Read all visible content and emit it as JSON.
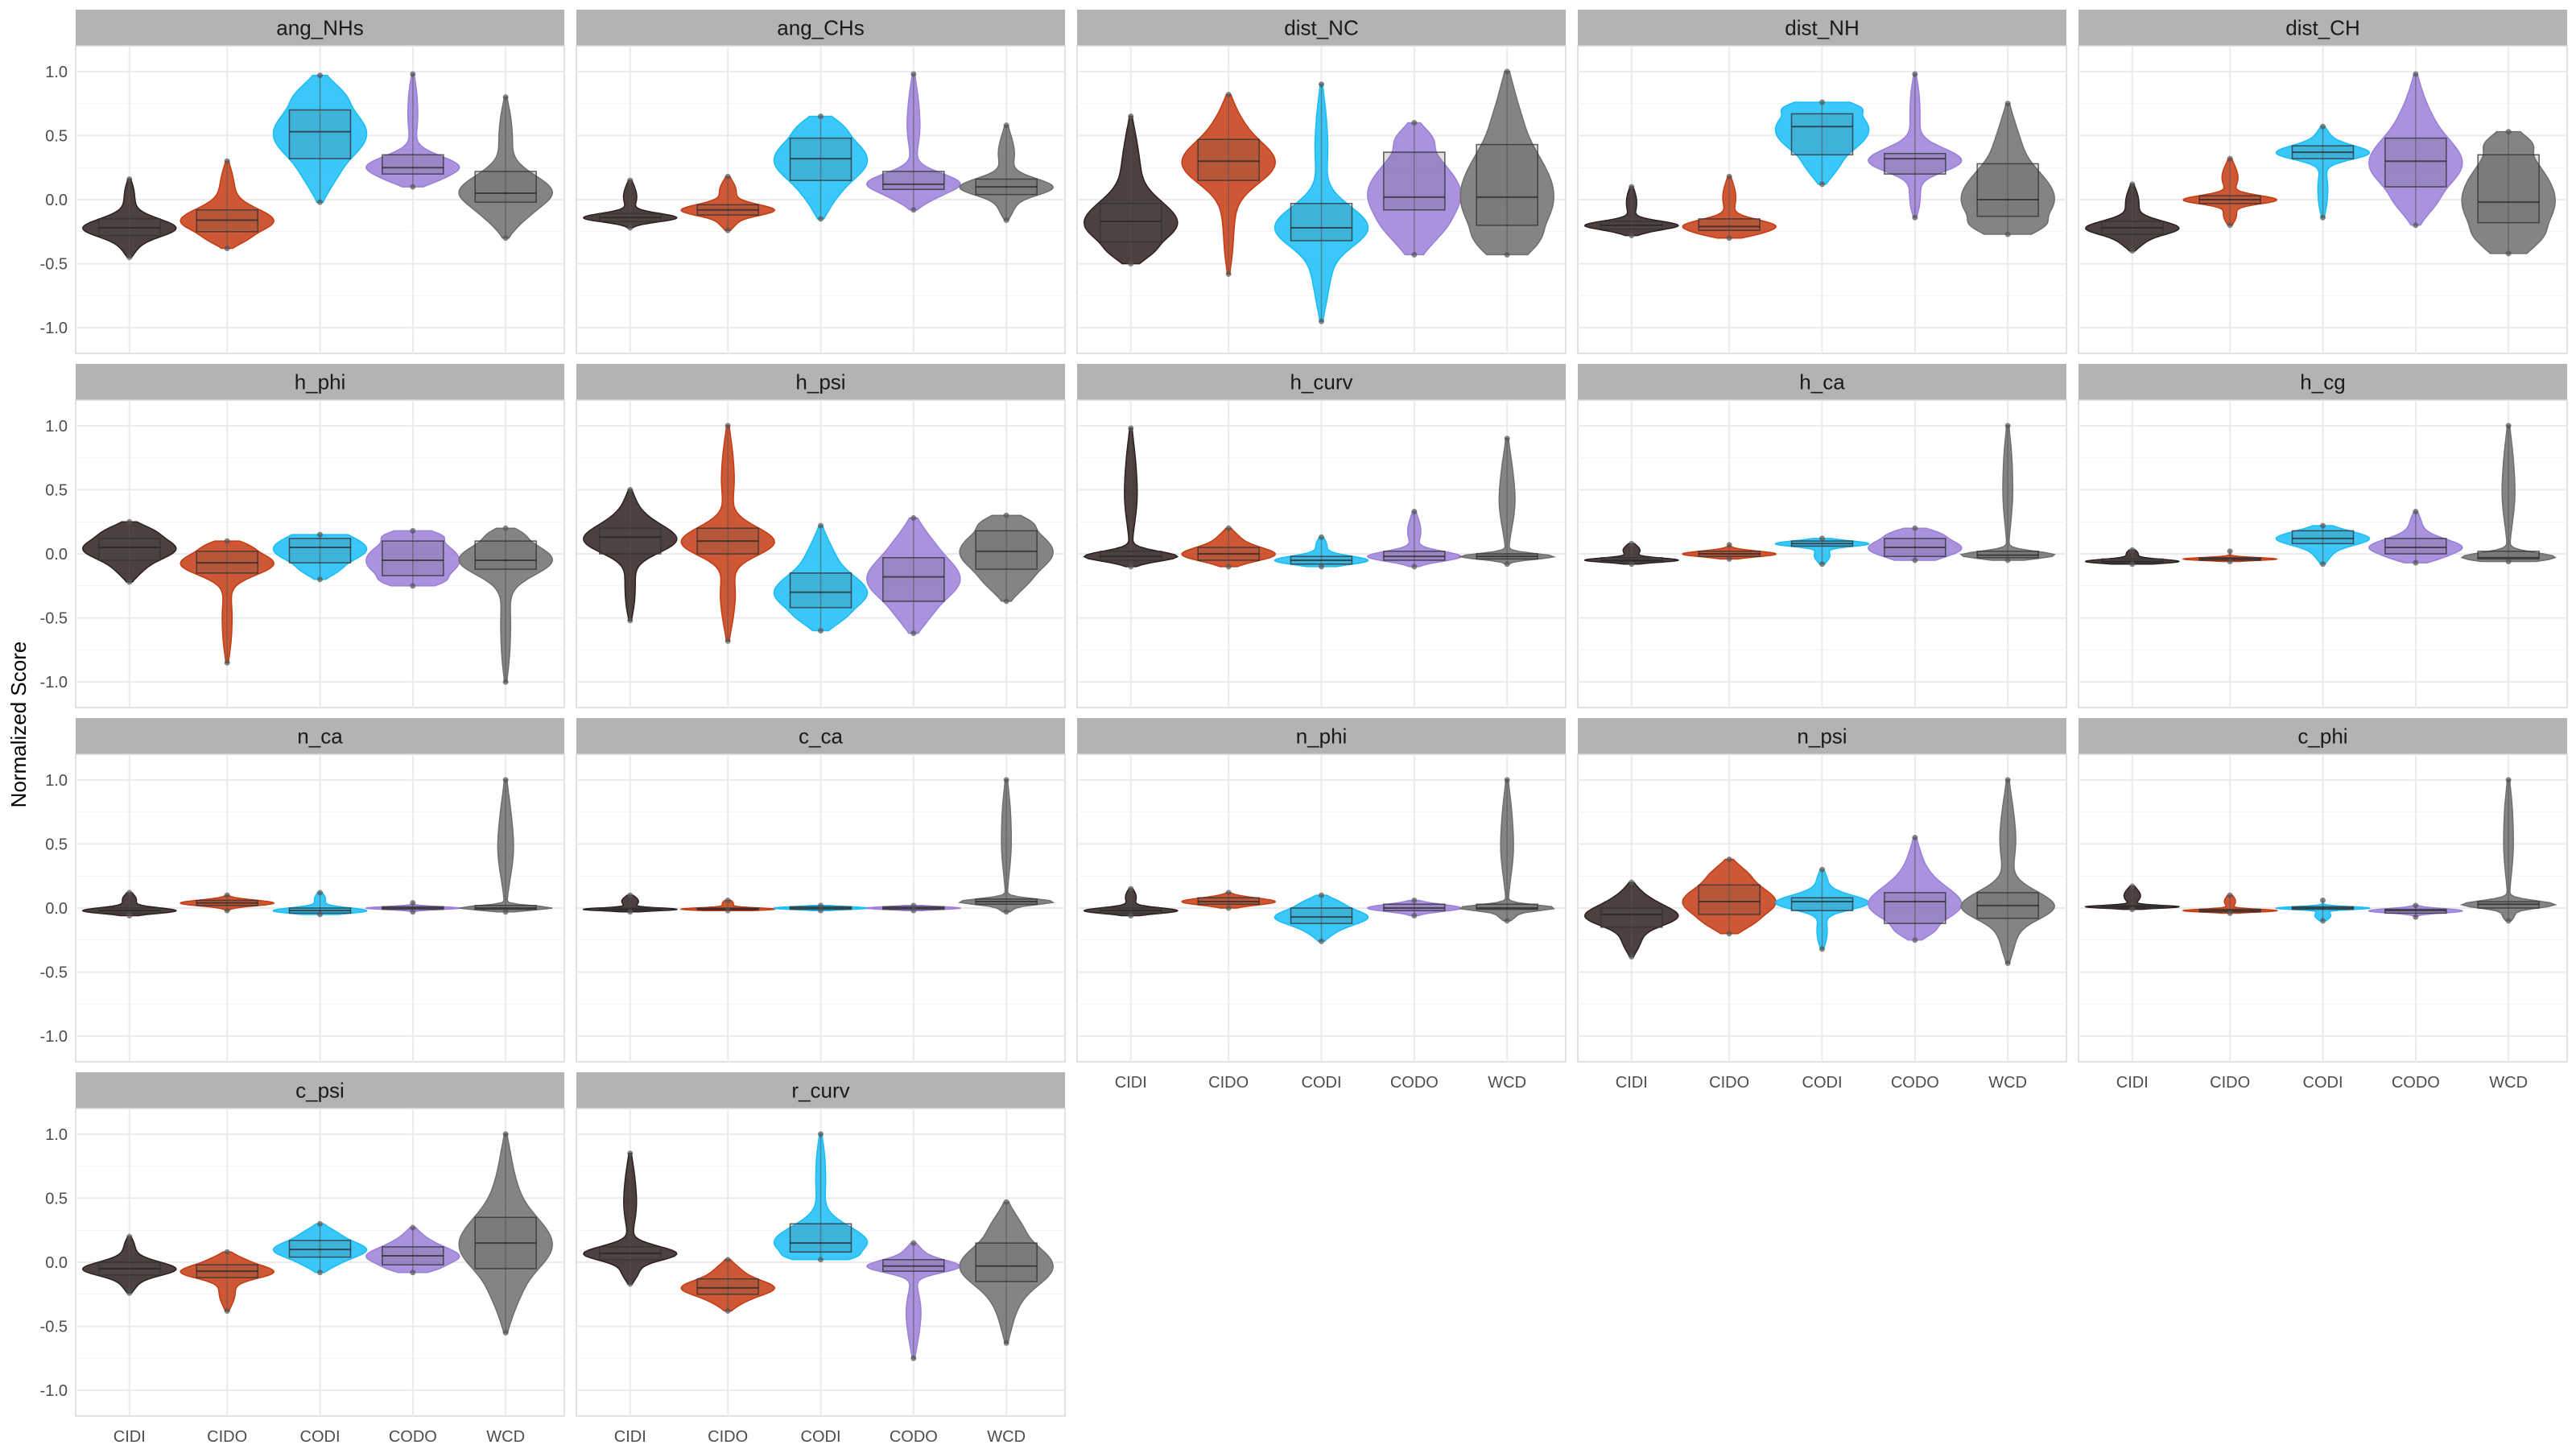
{
  "chart_data": {
    "type": "violin",
    "ylabel": "Normalized Score",
    "ylim": [
      -1.2,
      1.2
    ],
    "yticks": [
      -1.0,
      -0.5,
      0.0,
      0.5,
      1.0
    ],
    "ytick_labels": [
      "-1.0",
      "-0.5",
      "0.0",
      "0.5",
      "1.0"
    ],
    "categories": [
      "CIDI",
      "CIDO",
      "CODI",
      "CODO",
      "WCD"
    ],
    "category_colors": [
      "#2e1f1f",
      "#c53b12",
      "#19bdf7",
      "#9b7fd8",
      "#6e6e6e"
    ],
    "panel_background": "#ffffff",
    "strip_color": "#b3b3b3",
    "grid_color": "#ebebeb",
    "panels": [
      {
        "title": "ang_NHs",
        "groups": [
          {
            "min": -0.45,
            "q1": -0.28,
            "median": -0.22,
            "q3": -0.15,
            "max": 0.16
          },
          {
            "min": -0.38,
            "q1": -0.25,
            "median": -0.16,
            "q3": -0.08,
            "max": 0.3
          },
          {
            "min": -0.02,
            "q1": 0.32,
            "median": 0.53,
            "q3": 0.7,
            "max": 0.97
          },
          {
            "min": 0.1,
            "q1": 0.2,
            "median": 0.25,
            "q3": 0.35,
            "max": 0.98
          },
          {
            "min": -0.3,
            "q1": -0.02,
            "median": 0.05,
            "q3": 0.22,
            "max": 0.8
          }
        ]
      },
      {
        "title": "ang_CHs",
        "groups": [
          {
            "min": -0.22,
            "q1": -0.17,
            "median": -0.14,
            "q3": -0.11,
            "max": 0.15
          },
          {
            "min": -0.24,
            "q1": -0.12,
            "median": -0.08,
            "q3": -0.04,
            "max": 0.18
          },
          {
            "min": -0.15,
            "q1": 0.15,
            "median": 0.32,
            "q3": 0.48,
            "max": 0.65
          },
          {
            "min": -0.08,
            "q1": 0.08,
            "median": 0.12,
            "q3": 0.22,
            "max": 0.98
          },
          {
            "min": -0.16,
            "q1": 0.04,
            "median": 0.1,
            "q3": 0.16,
            "max": 0.58
          }
        ]
      },
      {
        "title": "dist_NC",
        "groups": [
          {
            "min": -0.5,
            "q1": -0.33,
            "median": -0.17,
            "q3": -0.03,
            "max": 0.65
          },
          {
            "min": -0.58,
            "q1": 0.15,
            "median": 0.3,
            "q3": 0.47,
            "max": 0.82
          },
          {
            "min": -0.95,
            "q1": -0.32,
            "median": -0.22,
            "q3": -0.03,
            "max": 0.9
          },
          {
            "min": -0.43,
            "q1": -0.08,
            "median": 0.02,
            "q3": 0.37,
            "max": 0.6
          },
          {
            "min": -0.43,
            "q1": -0.2,
            "median": 0.02,
            "q3": 0.43,
            "max": 1.0
          }
        ]
      },
      {
        "title": "dist_NH",
        "groups": [
          {
            "min": -0.28,
            "q1": -0.23,
            "median": -0.2,
            "q3": -0.17,
            "max": 0.1
          },
          {
            "min": -0.3,
            "q1": -0.24,
            "median": -0.21,
            "q3": -0.15,
            "max": 0.18
          },
          {
            "min": 0.12,
            "q1": 0.35,
            "median": 0.57,
            "q3": 0.67,
            "max": 0.76
          },
          {
            "min": -0.14,
            "q1": 0.2,
            "median": 0.32,
            "q3": 0.36,
            "max": 0.98
          },
          {
            "min": -0.27,
            "q1": -0.13,
            "median": 0.0,
            "q3": 0.28,
            "max": 0.75
          }
        ]
      },
      {
        "title": "dist_CH",
        "groups": [
          {
            "min": -0.4,
            "q1": -0.27,
            "median": -0.22,
            "q3": -0.17,
            "max": 0.12
          },
          {
            "min": -0.2,
            "q1": -0.03,
            "median": 0.0,
            "q3": 0.03,
            "max": 0.32
          },
          {
            "min": -0.14,
            "q1": 0.32,
            "median": 0.37,
            "q3": 0.42,
            "max": 0.57
          },
          {
            "min": -0.2,
            "q1": 0.1,
            "median": 0.3,
            "q3": 0.48,
            "max": 0.98
          },
          {
            "min": -0.42,
            "q1": -0.18,
            "median": -0.02,
            "q3": 0.35,
            "max": 0.53
          }
        ]
      },
      {
        "title": "h_phi",
        "groups": [
          {
            "min": -0.22,
            "q1": -0.05,
            "median": 0.05,
            "q3": 0.12,
            "max": 0.25
          },
          {
            "min": -0.85,
            "q1": -0.15,
            "median": -0.07,
            "q3": 0.02,
            "max": 0.1
          },
          {
            "min": -0.2,
            "q1": -0.07,
            "median": 0.05,
            "q3": 0.12,
            "max": 0.15
          },
          {
            "min": -0.25,
            "q1": -0.17,
            "median": -0.05,
            "q3": 0.1,
            "max": 0.18
          },
          {
            "min": -1.0,
            "q1": -0.12,
            "median": -0.05,
            "q3": 0.1,
            "max": 0.2
          }
        ]
      },
      {
        "title": "h_psi",
        "groups": [
          {
            "min": -0.52,
            "q1": 0.0,
            "median": 0.13,
            "q3": 0.2,
            "max": 0.5
          },
          {
            "min": -0.68,
            "q1": 0.0,
            "median": 0.1,
            "q3": 0.2,
            "max": 1.0
          },
          {
            "min": -0.6,
            "q1": -0.42,
            "median": -0.3,
            "q3": -0.15,
            "max": 0.22
          },
          {
            "min": -0.62,
            "q1": -0.37,
            "median": -0.18,
            "q3": -0.03,
            "max": 0.28
          },
          {
            "min": -0.37,
            "q1": -0.12,
            "median": 0.02,
            "q3": 0.18,
            "max": 0.3
          }
        ]
      },
      {
        "title": "h_curv",
        "groups": [
          {
            "min": -0.1,
            "q1": -0.05,
            "median": -0.02,
            "q3": 0.02,
            "max": 0.98
          },
          {
            "min": -0.1,
            "q1": -0.05,
            "median": 0.0,
            "q3": 0.05,
            "max": 0.2
          },
          {
            "min": -0.1,
            "q1": -0.08,
            "median": -0.05,
            "q3": -0.02,
            "max": 0.13
          },
          {
            "min": -0.1,
            "q1": -0.05,
            "median": -0.02,
            "q3": 0.02,
            "max": 0.33
          },
          {
            "min": -0.08,
            "q1": -0.04,
            "median": -0.02,
            "q3": 0.0,
            "max": 0.9
          }
        ]
      },
      {
        "title": "h_ca",
        "groups": [
          {
            "min": -0.08,
            "q1": -0.06,
            "median": -0.05,
            "q3": -0.03,
            "max": 0.08
          },
          {
            "min": -0.04,
            "q1": -0.02,
            "median": 0.0,
            "q3": 0.02,
            "max": 0.07
          },
          {
            "min": -0.08,
            "q1": 0.06,
            "median": 0.08,
            "q3": 0.1,
            "max": 0.12
          },
          {
            "min": -0.05,
            "q1": -0.02,
            "median": 0.05,
            "q3": 0.12,
            "max": 0.2
          },
          {
            "min": -0.05,
            "q1": -0.03,
            "median": -0.01,
            "q3": 0.02,
            "max": 1.0
          }
        ]
      },
      {
        "title": "h_cg",
        "groups": [
          {
            "min": -0.08,
            "q1": -0.07,
            "median": -0.06,
            "q3": -0.04,
            "max": 0.03
          },
          {
            "min": -0.06,
            "q1": -0.05,
            "median": -0.04,
            "q3": -0.03,
            "max": 0.02
          },
          {
            "min": -0.08,
            "q1": 0.08,
            "median": 0.12,
            "q3": 0.18,
            "max": 0.22
          },
          {
            "min": -0.07,
            "q1": 0.0,
            "median": 0.05,
            "q3": 0.12,
            "max": 0.33
          },
          {
            "min": -0.06,
            "q1": -0.04,
            "median": -0.03,
            "q3": 0.02,
            "max": 1.0
          }
        ]
      },
      {
        "title": "n_ca",
        "groups": [
          {
            "min": -0.06,
            "q1": -0.04,
            "median": -0.02,
            "q3": 0.0,
            "max": 0.12
          },
          {
            "min": -0.02,
            "q1": 0.02,
            "median": 0.04,
            "q3": 0.06,
            "max": 0.1
          },
          {
            "min": -0.05,
            "q1": -0.04,
            "median": -0.02,
            "q3": 0.0,
            "max": 0.12
          },
          {
            "min": -0.03,
            "q1": -0.01,
            "median": 0.0,
            "q3": 0.01,
            "max": 0.04
          },
          {
            "min": -0.03,
            "q1": -0.01,
            "median": 0.0,
            "q3": 0.02,
            "max": 1.0
          }
        ]
      },
      {
        "title": "c_ca",
        "groups": [
          {
            "min": -0.03,
            "q1": -0.02,
            "median": -0.01,
            "q3": 0.0,
            "max": 0.1
          },
          {
            "min": -0.02,
            "q1": -0.01,
            "median": -0.01,
            "q3": 0.0,
            "max": 0.06
          },
          {
            "min": -0.02,
            "q1": -0.01,
            "median": 0.0,
            "q3": 0.01,
            "max": 0.02
          },
          {
            "min": -0.02,
            "q1": -0.01,
            "median": 0.0,
            "q3": 0.01,
            "max": 0.02
          },
          {
            "min": -0.03,
            "q1": 0.03,
            "median": 0.05,
            "q3": 0.07,
            "max": 1.0
          }
        ]
      },
      {
        "title": "n_phi",
        "groups": [
          {
            "min": -0.06,
            "q1": -0.04,
            "median": -0.02,
            "q3": 0.0,
            "max": 0.15
          },
          {
            "min": 0.0,
            "q1": 0.03,
            "median": 0.05,
            "q3": 0.08,
            "max": 0.12
          },
          {
            "min": -0.26,
            "q1": -0.12,
            "median": -0.07,
            "q3": 0.0,
            "max": 0.1
          },
          {
            "min": -0.06,
            "q1": -0.02,
            "median": 0.0,
            "q3": 0.03,
            "max": 0.06
          },
          {
            "min": -0.1,
            "q1": -0.01,
            "median": 0.0,
            "q3": 0.03,
            "max": 1.0
          }
        ]
      },
      {
        "title": "n_psi",
        "groups": [
          {
            "min": -0.38,
            "q1": -0.15,
            "median": -0.05,
            "q3": 0.0,
            "max": 0.2
          },
          {
            "min": -0.2,
            "q1": -0.05,
            "median": 0.05,
            "q3": 0.18,
            "max": 0.38
          },
          {
            "min": -0.32,
            "q1": -0.02,
            "median": 0.05,
            "q3": 0.08,
            "max": 0.3
          },
          {
            "min": -0.25,
            "q1": -0.12,
            "median": 0.05,
            "q3": 0.12,
            "max": 0.55
          },
          {
            "min": -0.43,
            "q1": -0.08,
            "median": 0.02,
            "q3": 0.12,
            "max": 1.0
          }
        ]
      },
      {
        "title": "c_phi",
        "groups": [
          {
            "min": -0.01,
            "q1": 0.0,
            "median": 0.01,
            "q3": 0.02,
            "max": 0.17
          },
          {
            "min": -0.04,
            "q1": -0.03,
            "median": -0.02,
            "q3": -0.01,
            "max": 0.1
          },
          {
            "min": -0.1,
            "q1": -0.01,
            "median": 0.0,
            "q3": 0.01,
            "max": 0.06
          },
          {
            "min": -0.07,
            "q1": -0.04,
            "median": -0.02,
            "q3": -0.01,
            "max": 0.02
          },
          {
            "min": -0.1,
            "q1": 0.0,
            "median": 0.03,
            "q3": 0.05,
            "max": 1.0
          }
        ]
      },
      {
        "title": "c_psi",
        "groups": [
          {
            "min": -0.24,
            "q1": -0.1,
            "median": -0.05,
            "q3": 0.0,
            "max": 0.2
          },
          {
            "min": -0.38,
            "q1": -0.12,
            "median": -0.07,
            "q3": -0.02,
            "max": 0.08
          },
          {
            "min": -0.08,
            "q1": 0.04,
            "median": 0.1,
            "q3": 0.17,
            "max": 0.3
          },
          {
            "min": -0.08,
            "q1": -0.02,
            "median": 0.05,
            "q3": 0.12,
            "max": 0.27
          },
          {
            "min": -0.55,
            "q1": -0.05,
            "median": 0.15,
            "q3": 0.35,
            "max": 1.0
          }
        ]
      },
      {
        "title": "r_curv",
        "groups": [
          {
            "min": -0.17,
            "q1": 0.02,
            "median": 0.07,
            "q3": 0.12,
            "max": 0.85
          },
          {
            "min": -0.38,
            "q1": -0.25,
            "median": -0.2,
            "q3": -0.13,
            "max": 0.02
          },
          {
            "min": 0.02,
            "q1": 0.08,
            "median": 0.15,
            "q3": 0.3,
            "max": 1.0
          },
          {
            "min": -0.75,
            "q1": -0.07,
            "median": -0.03,
            "q3": 0.02,
            "max": 0.15
          },
          {
            "min": -0.63,
            "q1": -0.15,
            "median": -0.03,
            "q3": 0.15,
            "max": 0.47
          }
        ]
      }
    ]
  }
}
